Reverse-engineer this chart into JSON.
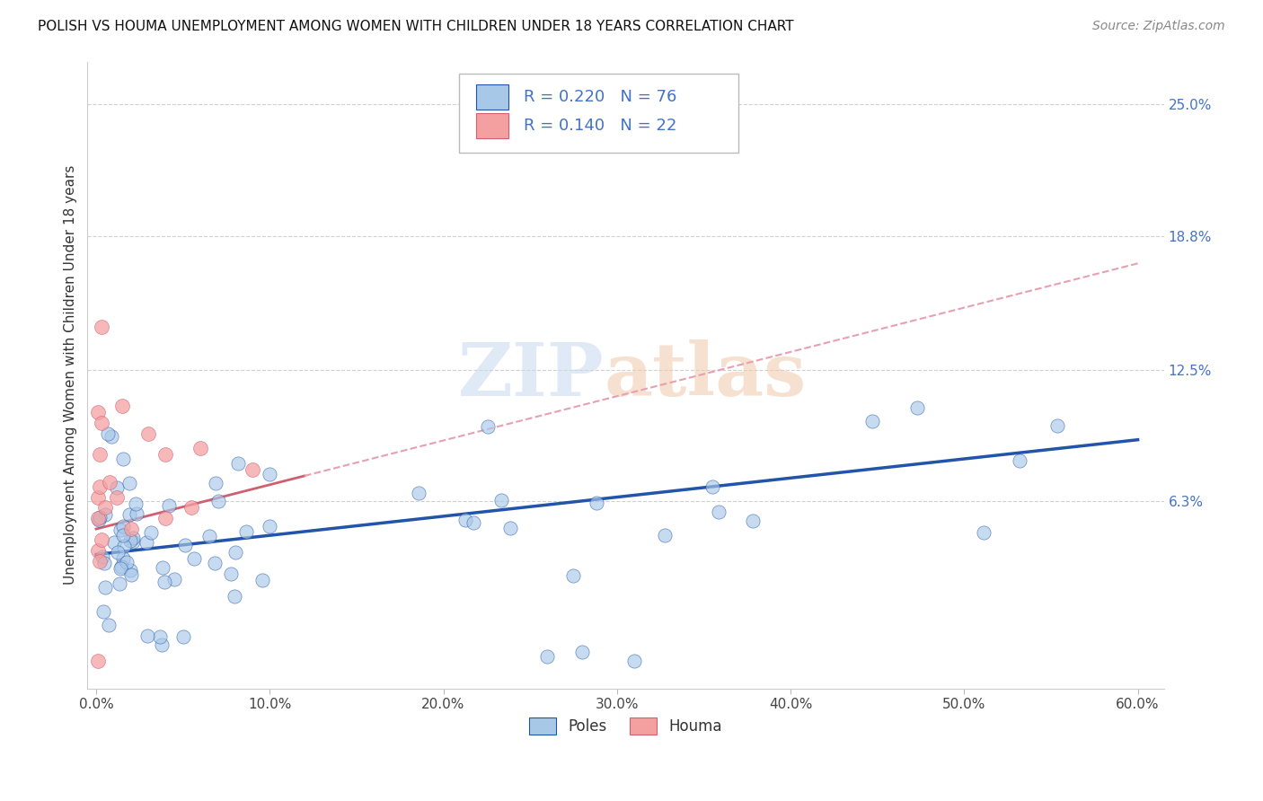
{
  "title": "POLISH VS HOUMA UNEMPLOYMENT AMONG WOMEN WITH CHILDREN UNDER 18 YEARS CORRELATION CHART",
  "source": "Source: ZipAtlas.com",
  "ylabel": "Unemployment Among Women with Children Under 18 years",
  "xlim": [
    -0.005,
    0.615
  ],
  "ylim": [
    -0.025,
    0.27
  ],
  "yticks": [
    0.063,
    0.125,
    0.188,
    0.25
  ],
  "ytick_labels": [
    "6.3%",
    "12.5%",
    "18.8%",
    "25.0%"
  ],
  "xticks": [
    0.0,
    0.1,
    0.2,
    0.3,
    0.4,
    0.5,
    0.6
  ],
  "xtick_labels": [
    "0.0%",
    "10.0%",
    "20.0%",
    "30.0%",
    "40.0%",
    "50.0%",
    "60.0%"
  ],
  "poles_color": "#a8c8e8",
  "houma_color": "#f4a0a0",
  "poles_line_color": "#2255aa",
  "houma_line_color": "#d06070",
  "houma_line_dashed_color": "#e8a0b0",
  "R_poles": 0.22,
  "N_poles": 76,
  "R_houma": 0.14,
  "N_houma": 22,
  "legend_color": "#4472c4",
  "watermark_zip": "ZIP",
  "watermark_atlas": "atlas",
  "background_color": "#ffffff",
  "grid_color": "#d0d0d0"
}
